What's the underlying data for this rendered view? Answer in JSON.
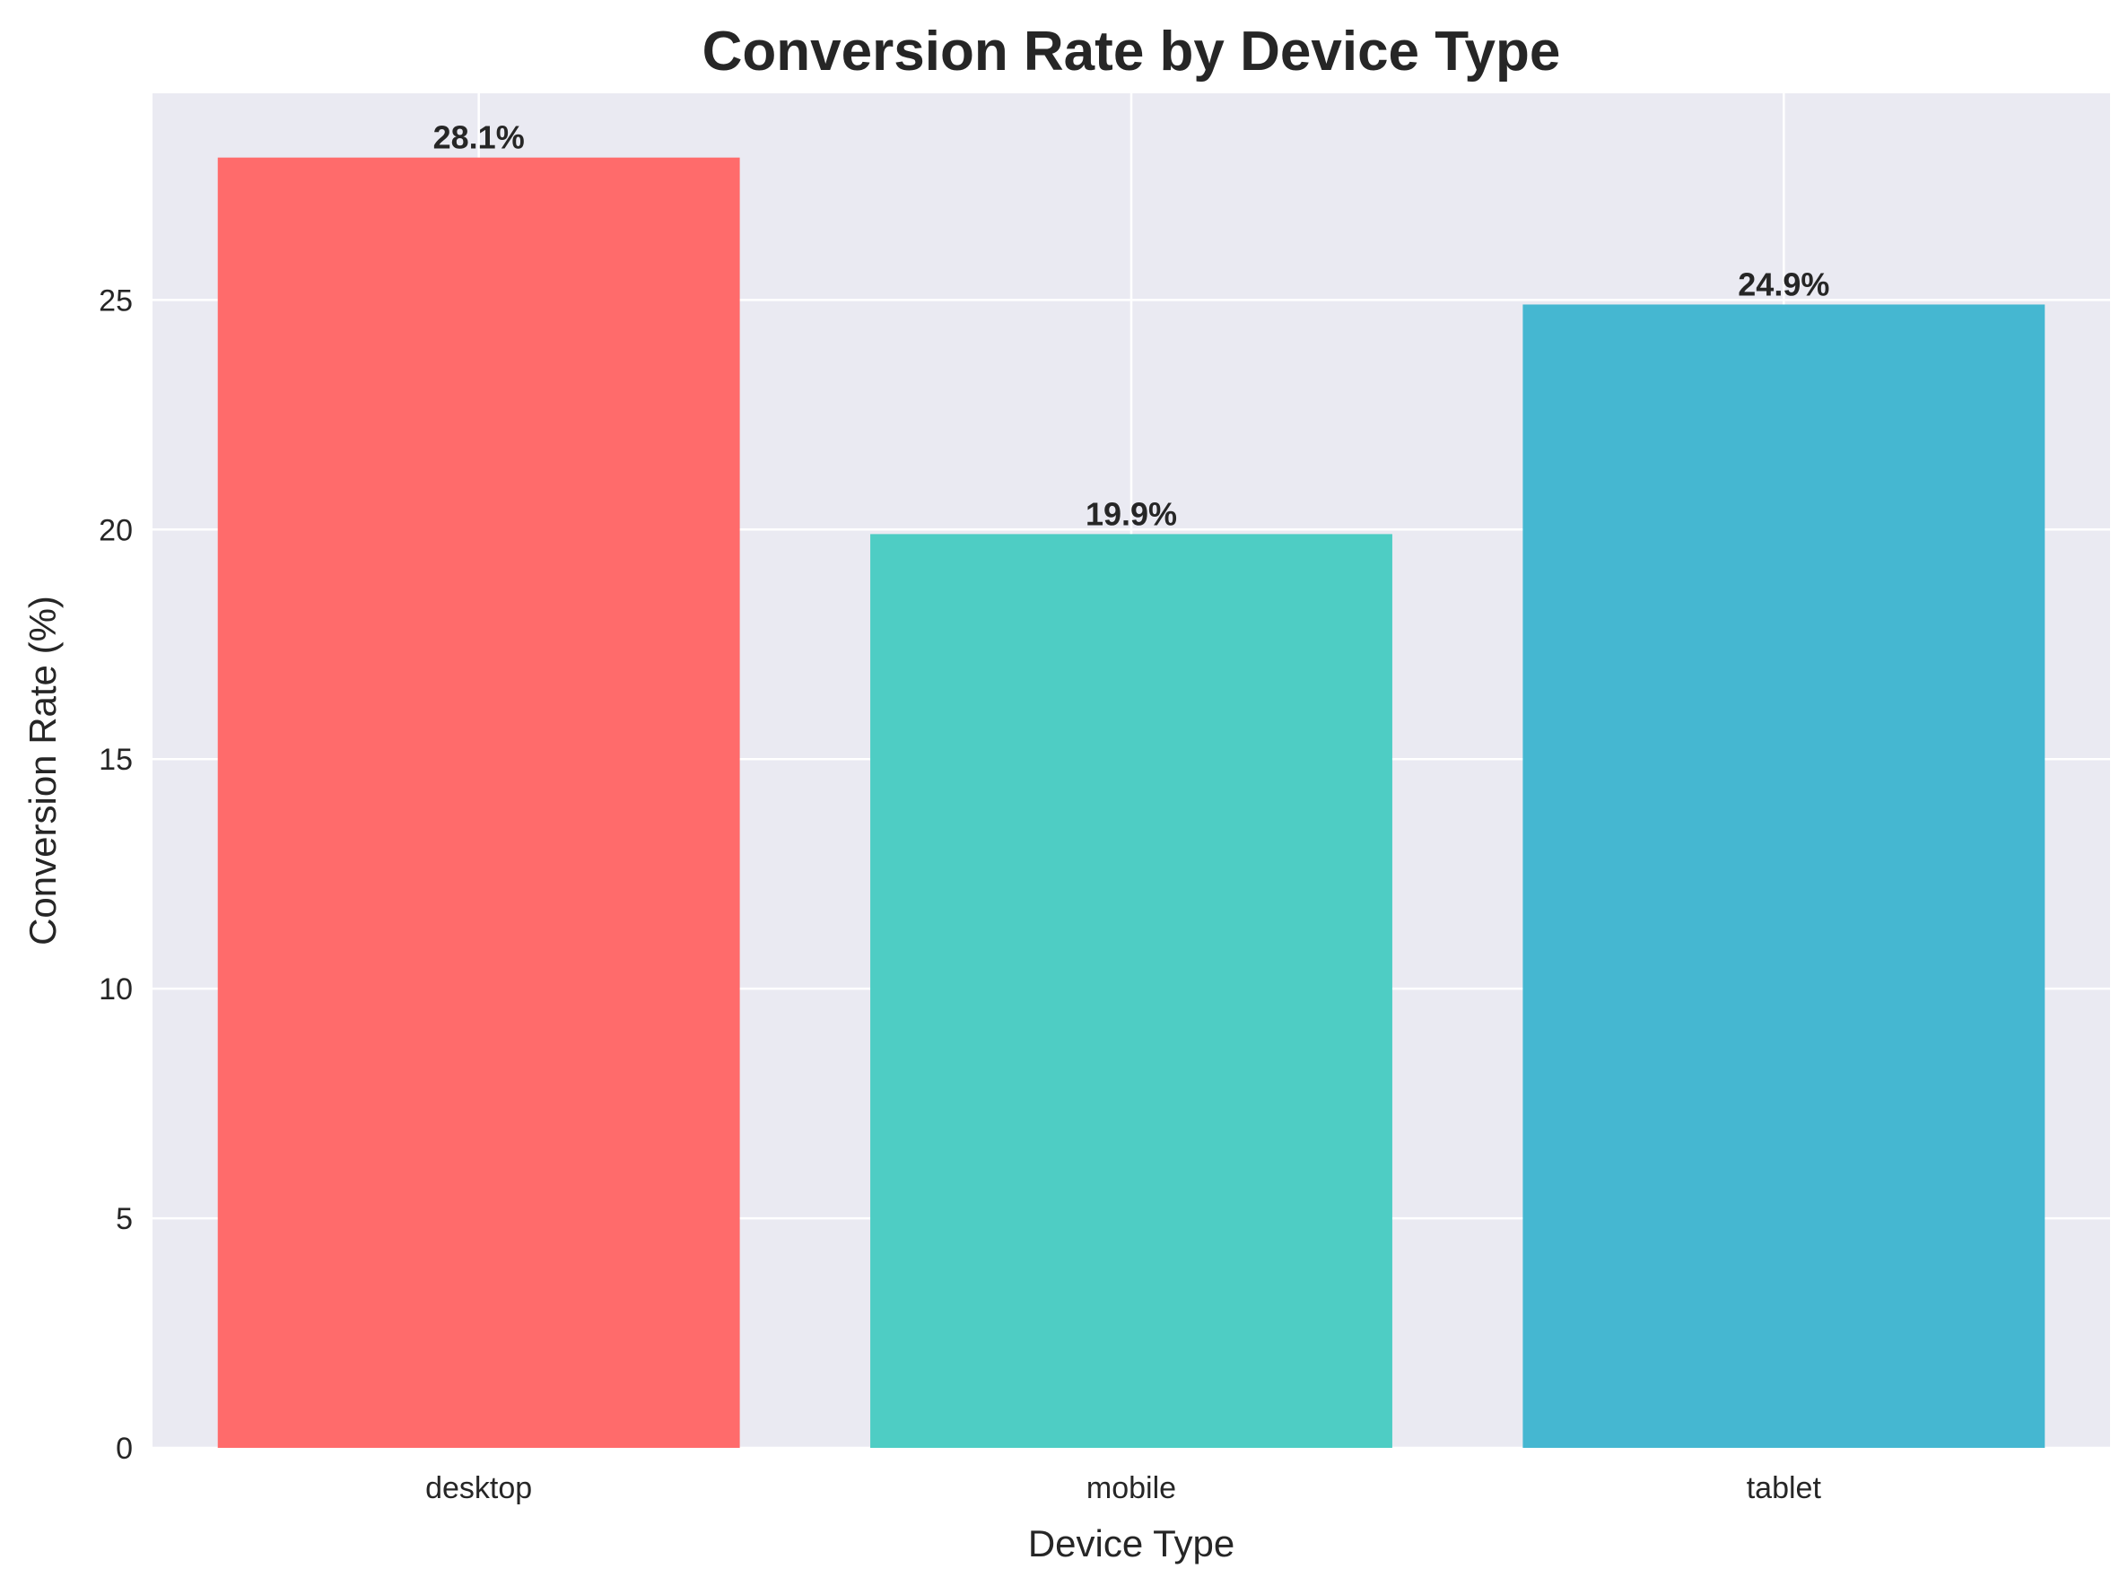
{
  "chart_data": {
    "type": "bar",
    "title": "Conversion Rate by Device Type",
    "xlabel": "Device Type",
    "ylabel": "Conversion Rate (%)",
    "categories": [
      "desktop",
      "mobile",
      "tablet"
    ],
    "values": [
      28.1,
      19.9,
      24.9
    ],
    "data_labels": [
      "28.1%",
      "19.9%",
      "24.9%"
    ],
    "colors": [
      "#ff6b6b",
      "#4ecdc4",
      "#45b7d1"
    ],
    "ylim": [
      0,
      29.5
    ],
    "yticks": [
      0,
      5,
      10,
      15,
      20,
      25
    ],
    "ytick_labels": [
      "0",
      "5",
      "10",
      "15",
      "20",
      "25"
    ],
    "grid": true,
    "background_color": "#eaeaf2",
    "grid_color": "#ffffff"
  }
}
